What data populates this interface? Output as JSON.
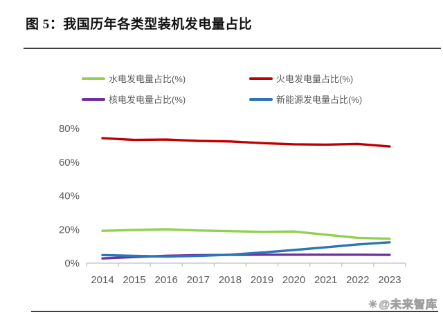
{
  "page": {
    "title": "图 5：我国历年各类型装机发电量占比",
    "watermark_text": "@未来智库",
    "watermark_icon_glyph": "✳"
  },
  "chart_data": {
    "type": "line",
    "title": "我国历年各类型装机发电量占比",
    "x": [
      "2014",
      "2015",
      "2016",
      "2017",
      "2018",
      "2019",
      "2020",
      "2021",
      "2022",
      "2023"
    ],
    "series": [
      {
        "name": "水电发电量占比(%)",
        "color": "#92D050",
        "values": [
          19.2,
          19.7,
          20.1,
          19.4,
          19.0,
          18.6,
          18.8,
          16.9,
          15.0,
          14.5
        ]
      },
      {
        "name": "火电发电量占比(%)",
        "color": "#C00000",
        "values": [
          74.2,
          73.2,
          73.4,
          72.6,
          72.3,
          71.3,
          70.6,
          70.4,
          70.8,
          69.3
        ]
      },
      {
        "name": "核电发电量占比(%)",
        "color": "#7030A0",
        "values": [
          2.8,
          3.6,
          4.4,
          4.7,
          4.9,
          5.0,
          5.0,
          5.0,
          5.0,
          4.9
        ]
      },
      {
        "name": "新能源发电量占比(%)",
        "color": "#2E75B6",
        "values": [
          4.8,
          4.3,
          3.9,
          4.3,
          5.0,
          6.3,
          7.8,
          9.4,
          11.1,
          12.4
        ]
      }
    ],
    "ylim": [
      0,
      80
    ],
    "yticks": [
      "0%",
      "20%",
      "40%",
      "60%",
      "80%"
    ],
    "xlabel": "",
    "ylabel": "",
    "grid": false,
    "legend_position": "top",
    "axis_color": "#bfbfbf",
    "label_color": "#595959"
  }
}
